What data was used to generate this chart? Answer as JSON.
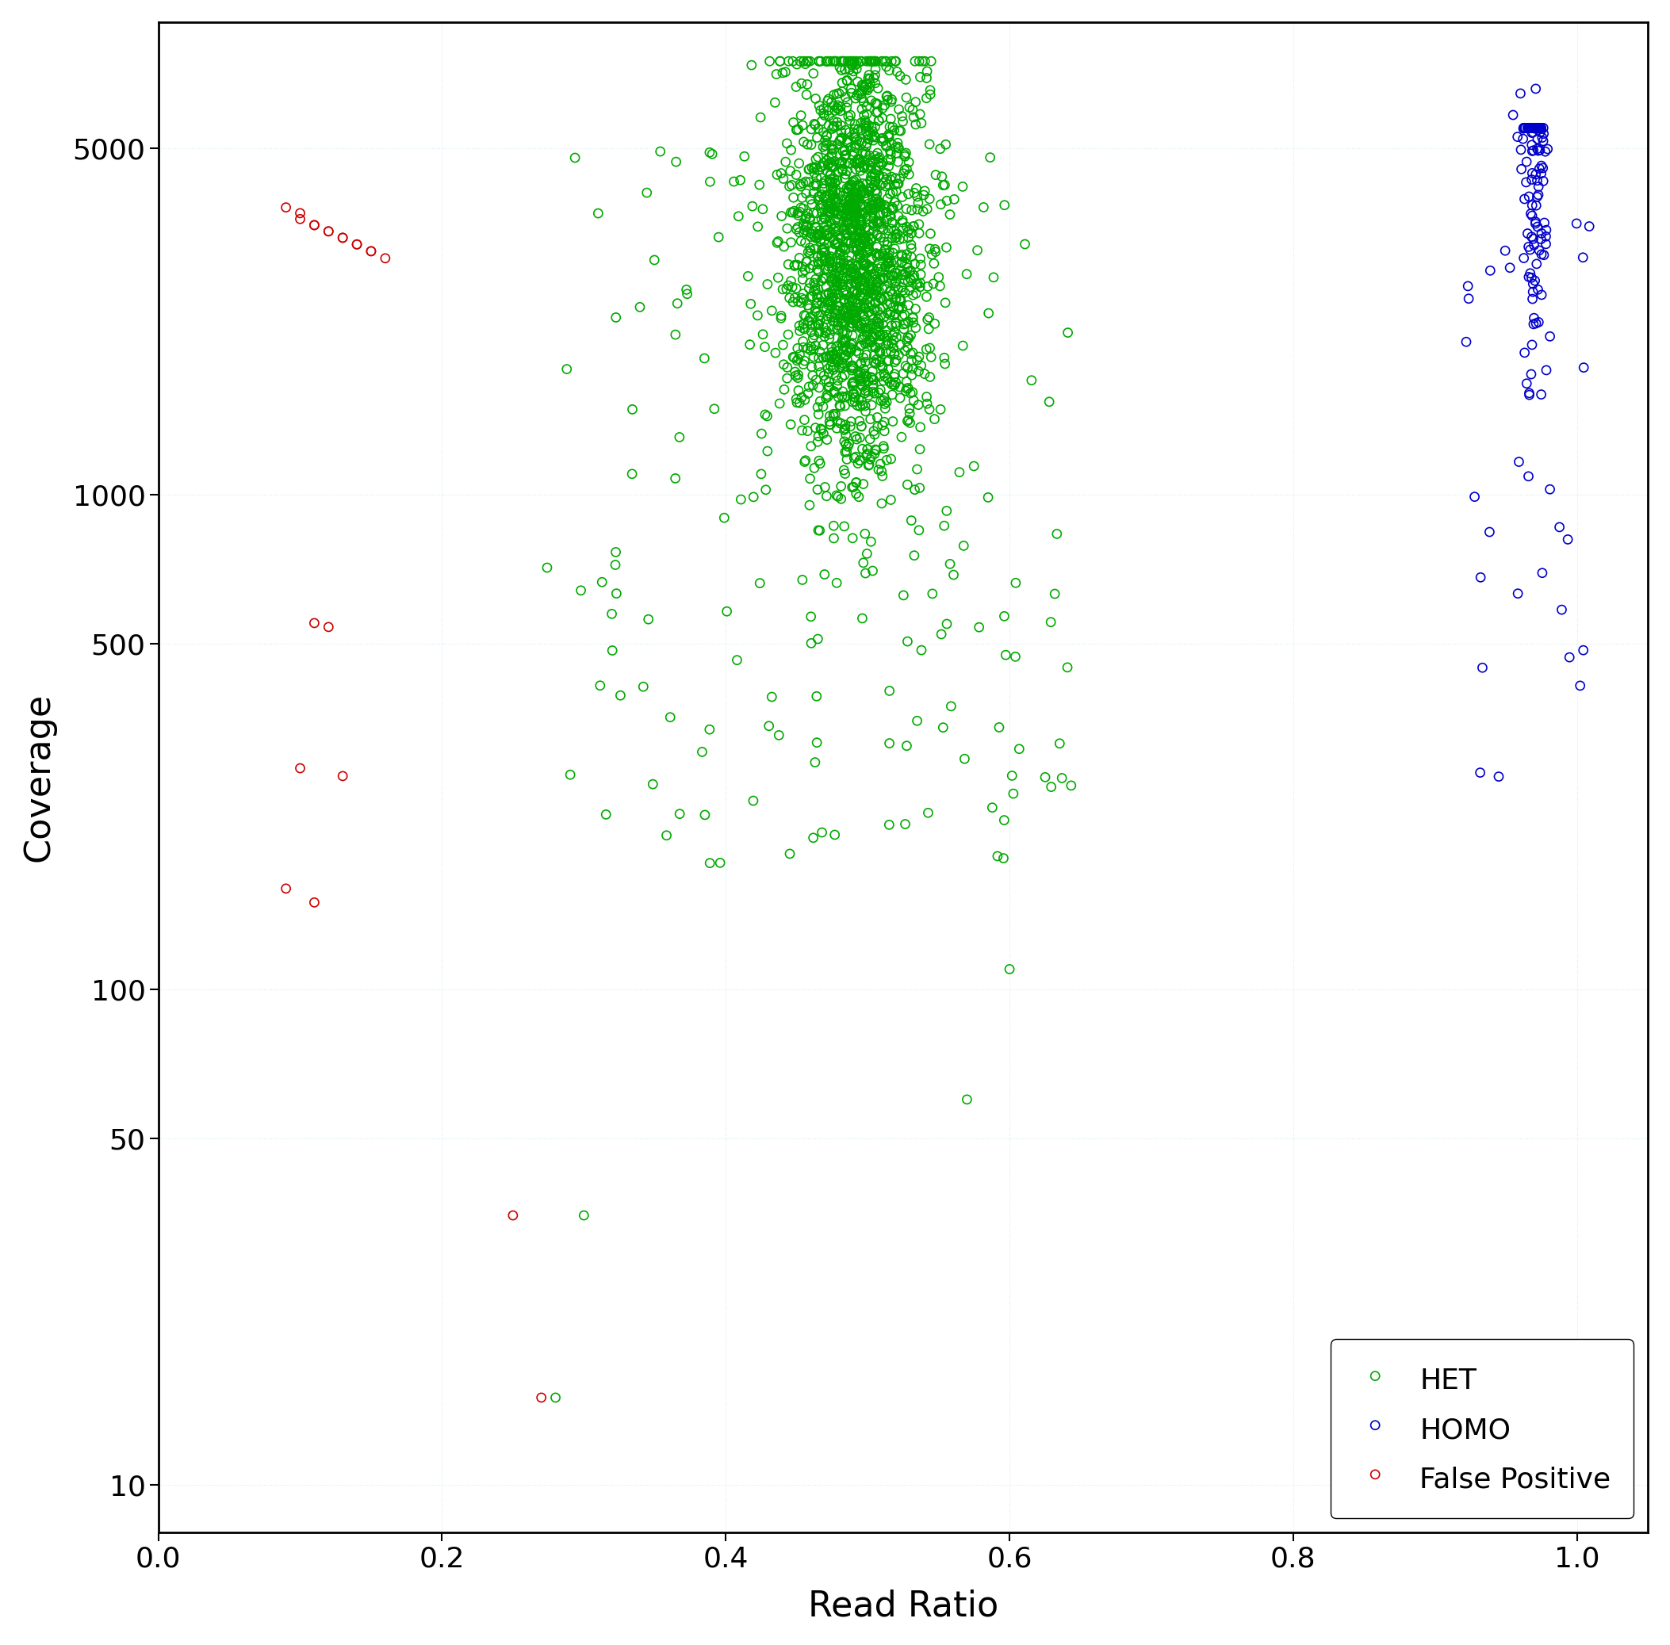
{
  "title": "",
  "xlabel": "Read Ratio",
  "ylabel": "Coverage",
  "xlim": [
    0.0,
    1.05
  ],
  "ylim_log": [
    8,
    9000
  ],
  "yticks": [
    10,
    50,
    100,
    500,
    1000,
    5000
  ],
  "xticks": [
    0.0,
    0.2,
    0.4,
    0.6,
    0.8,
    1.0
  ],
  "background_color": "#ffffff",
  "marker_size": 8,
  "linewidth": 1.2,
  "legend_labels": [
    "False Positive",
    "HET",
    "HOMO"
  ],
  "legend_colors": [
    "#cc0000",
    "#00aa00",
    "#0000cc"
  ],
  "fp_x": [
    0.09,
    0.1,
    0.11,
    0.12,
    0.13,
    0.14,
    0.15,
    0.16,
    0.1,
    0.11,
    0.12,
    0.13,
    0.14,
    0.15,
    0.11,
    0.12,
    0.1,
    0.13,
    0.09,
    0.11,
    0.25,
    0.27
  ],
  "fp_y": [
    3800,
    3600,
    3500,
    3400,
    3300,
    3200,
    3100,
    3000,
    3700,
    3500,
    3400,
    3300,
    3200,
    3100,
    550,
    540,
    280,
    270,
    160,
    150,
    35,
    15
  ]
}
